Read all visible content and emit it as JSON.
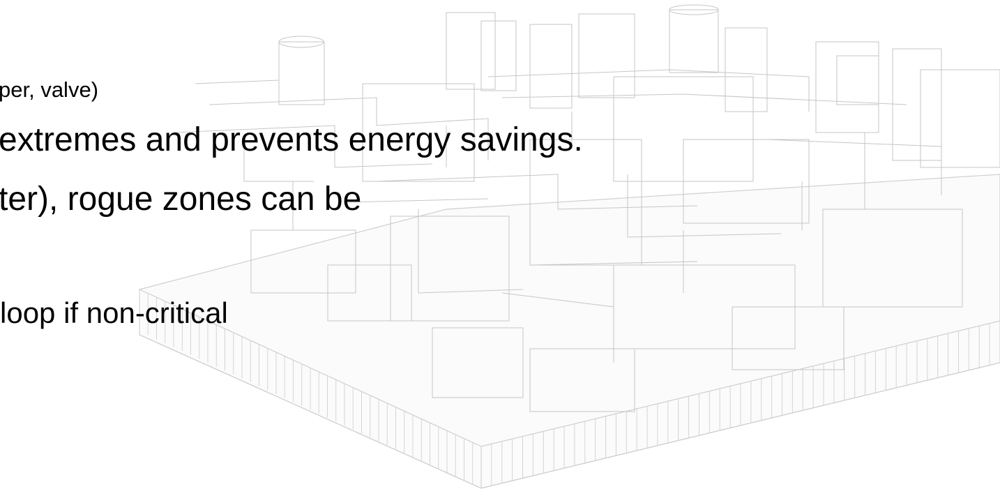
{
  "slide": {
    "lines": [
      "per, valve)",
      "extremes and prevents energy savings.",
      "ter), rogue zones can be",
      " loop if non-critical"
    ]
  },
  "colors": {
    "text": "#000000",
    "background": "#ffffff",
    "wireframe": "#c8c8c8"
  }
}
